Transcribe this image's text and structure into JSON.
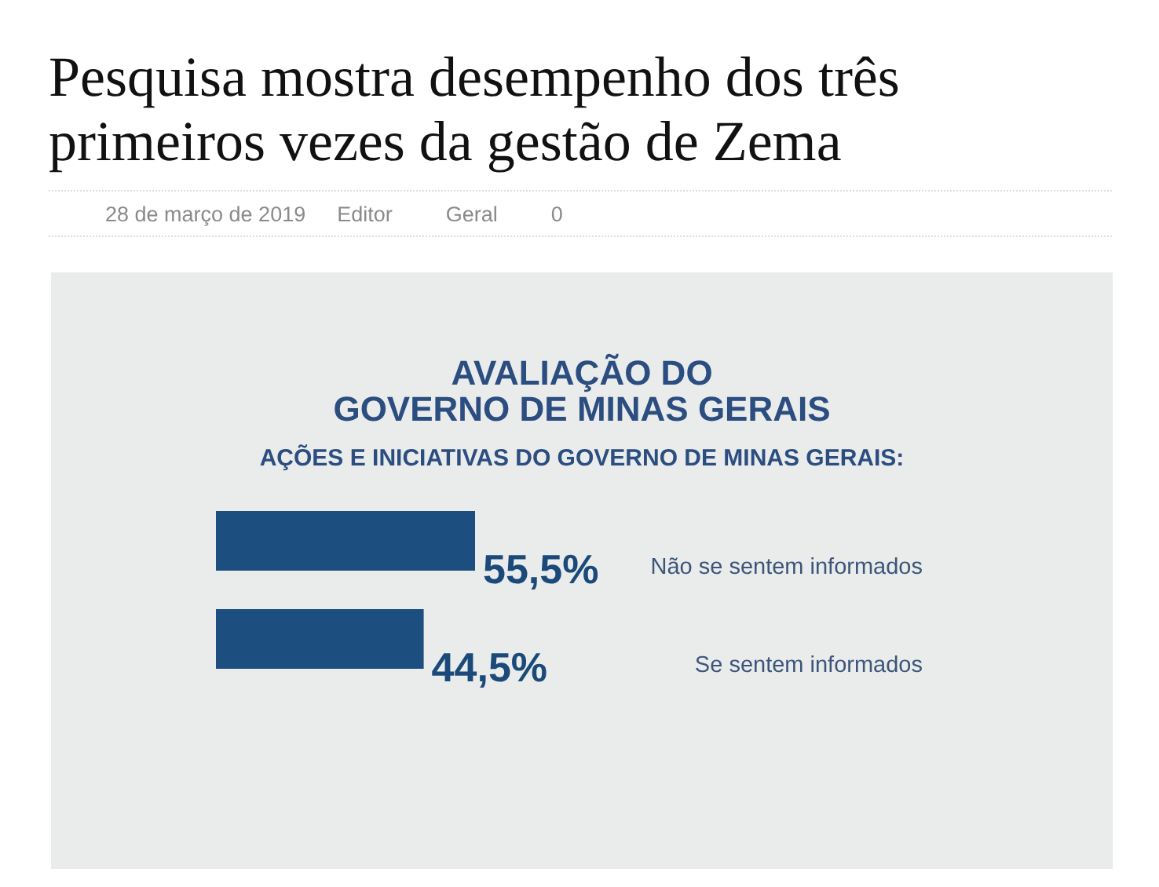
{
  "chart_data": {
    "type": "bar",
    "orientation": "horizontal",
    "title": "AVALIAÇÃO DO\nGOVERNO DE MINAS GERAIS",
    "subtitle": "AÇÕES E INICIATIVAS DO GOVERNO DE MINAS GERAIS:",
    "categories": [
      "Não se sentem informados",
      "Se sentem informados"
    ],
    "values": [
      55.5,
      44.5
    ],
    "value_labels": [
      "55,5%",
      "44,5%"
    ],
    "color": "#1c4f80",
    "tick_labels": false,
    "annotations": [
      "Pesquisa mostra desempenho dos três primeiros vezes da gestão de Zema",
      "28 de março de 2019",
      "Editor",
      "Geral",
      "0"
    ]
  }
}
